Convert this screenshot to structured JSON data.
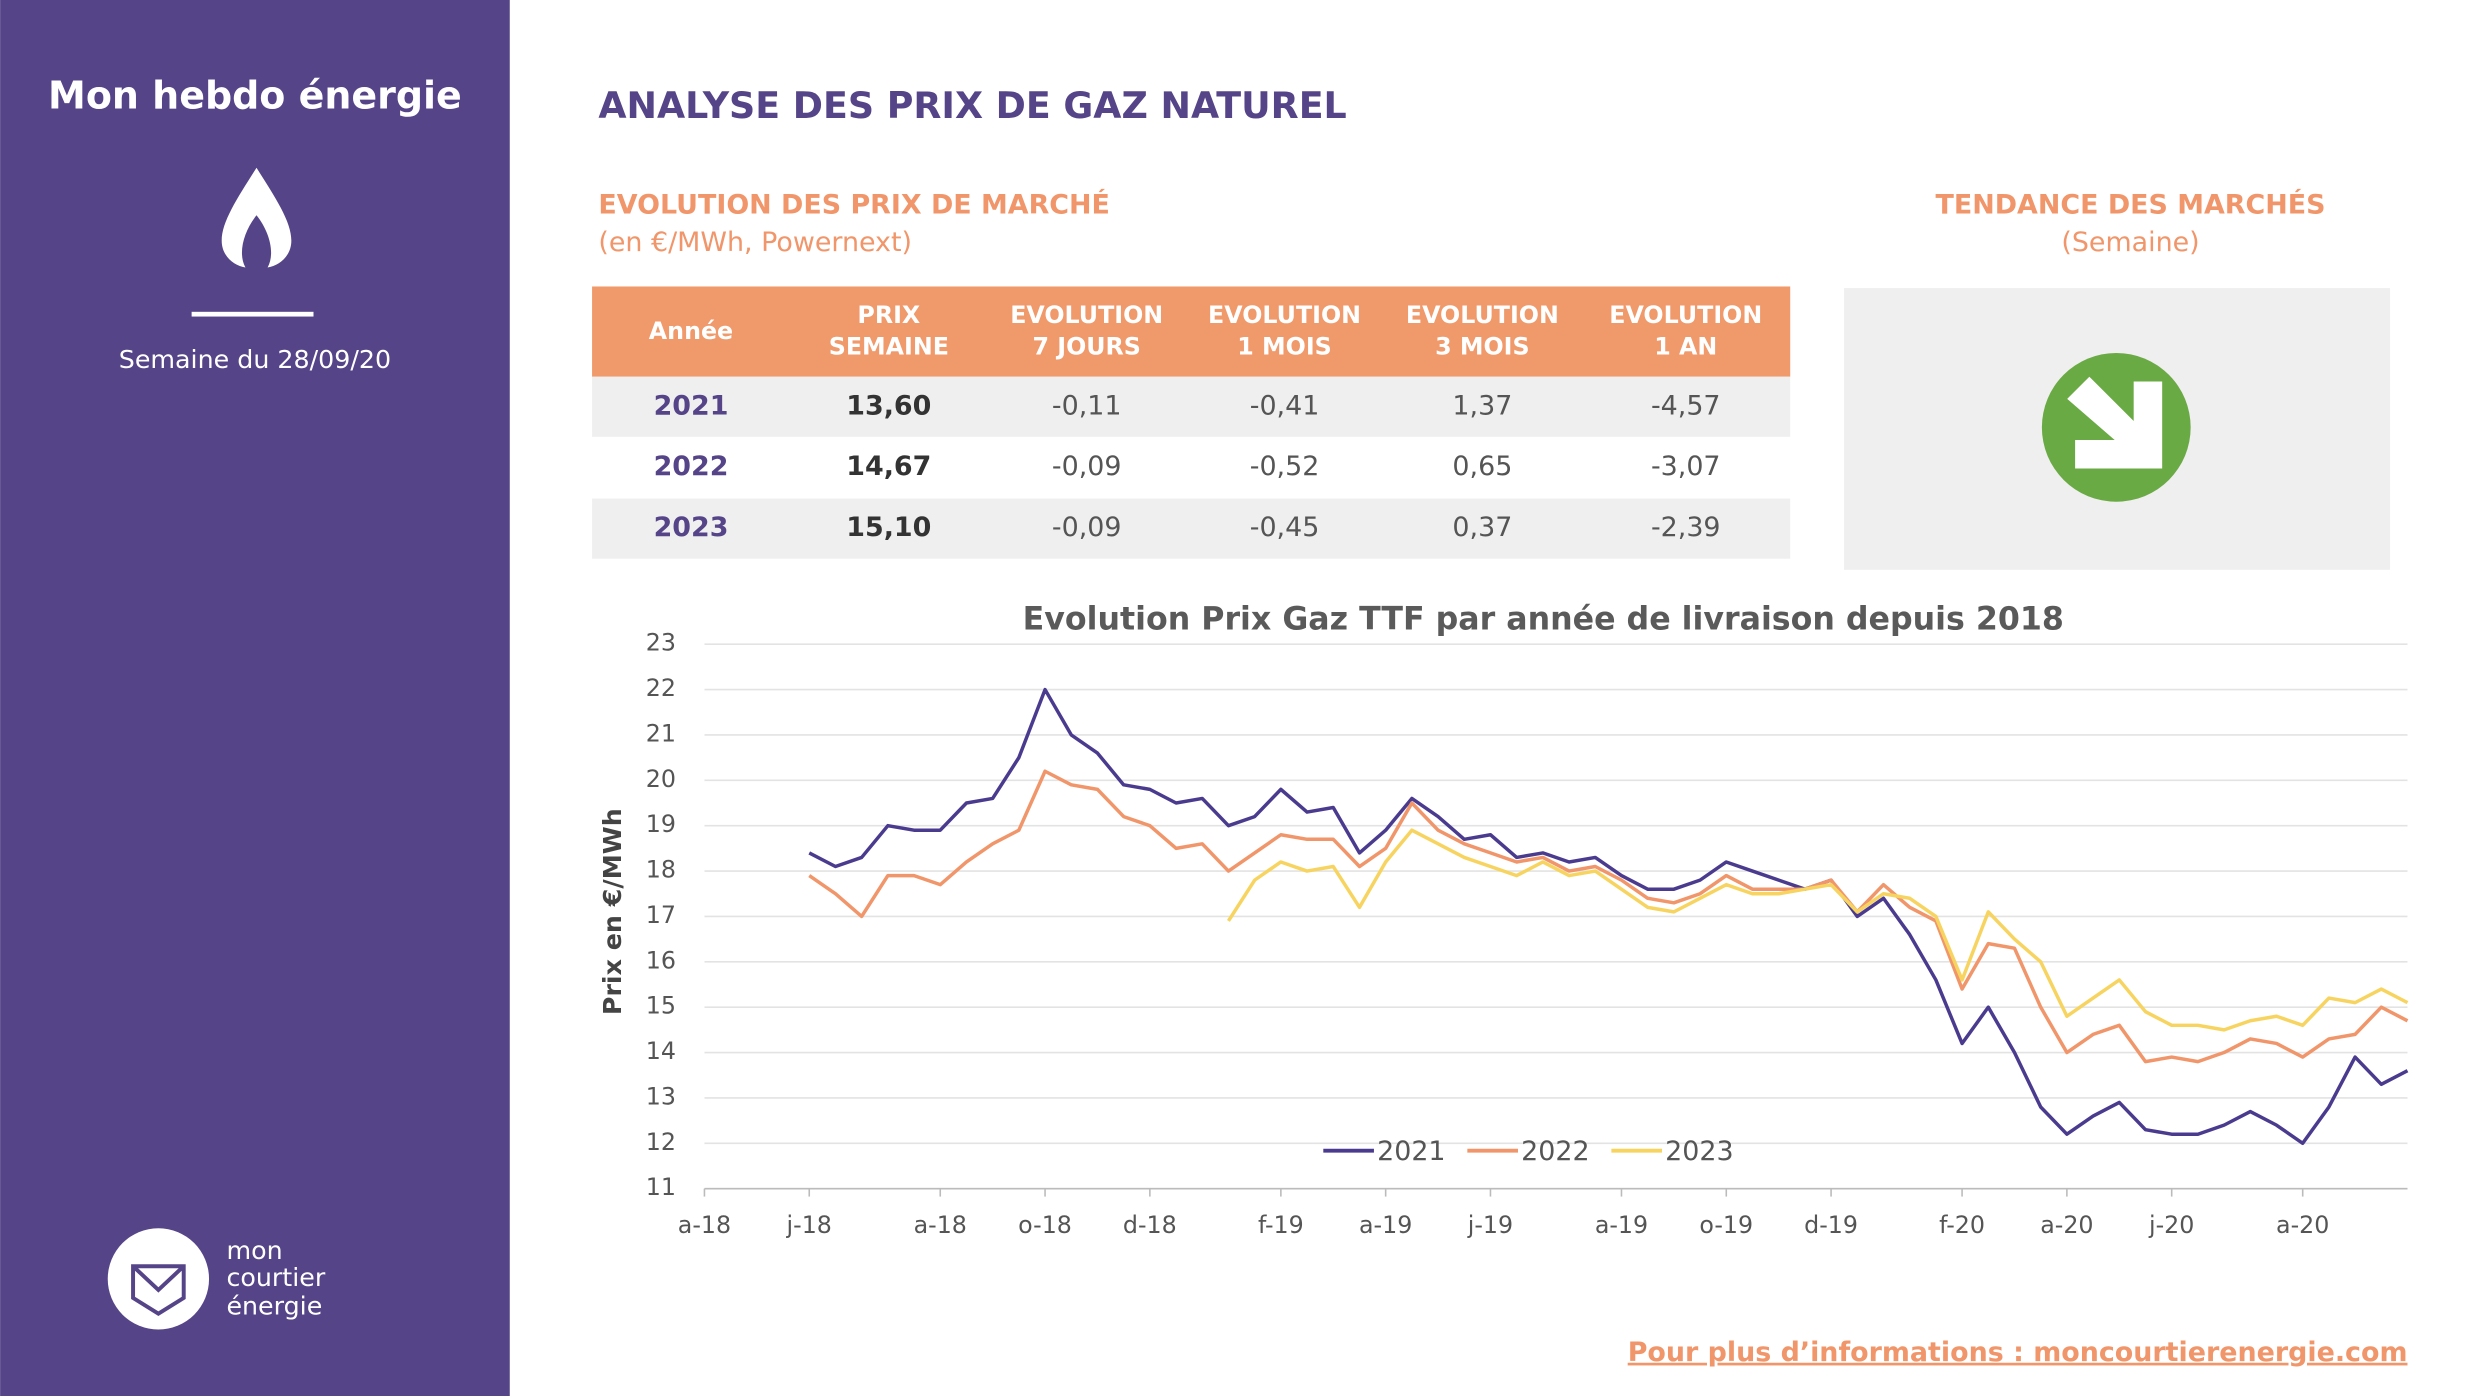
{
  "header": {
    "brand": "Mon hebdo énergie",
    "week": "Semaine du 28/09/20"
  },
  "logo": {
    "lines": [
      "mon",
      "courtier",
      "énergie"
    ]
  },
  "page_title": "ANALYSE DES PRIX DE GAZ NATUREL",
  "table_section": {
    "title": "EVOLUTION DES PRIX DE MARCHÉ",
    "subtitle": "(en €/MWh, Powernext)"
  },
  "trend_section": {
    "title": "TENDANCE DES MARCHÉS",
    "subtitle": "(Semaine)"
  },
  "table": {
    "columns": [
      [
        "Année"
      ],
      [
        "PRIX",
        "SEMAINE"
      ],
      [
        "EVOLUTION",
        "7 JOURS"
      ],
      [
        "EVOLUTION",
        "1 MOIS"
      ],
      [
        "EVOLUTION",
        "3 MOIS"
      ],
      [
        "EVOLUTION",
        "1 AN"
      ]
    ],
    "rows": [
      [
        "2021",
        "13,60",
        "-0,11",
        "-0,41",
        "1,37",
        "-4,57"
      ],
      [
        "2022",
        "14,67",
        "-0,09",
        "-0,52",
        "0,65",
        "-3,07"
      ],
      [
        "2023",
        "15,10",
        "-0,09",
        "-0,45",
        "0,37",
        "-2,39"
      ]
    ]
  },
  "footer": {
    "link": "Pour plus d’informations : moncourtierenergie.com"
  },
  "chart_data": {
    "type": "line",
    "title": "Evolution Prix Gaz TTF par année de livraison depuis 2018",
    "y_label": "Prix en €/MWh",
    "categories": [
      "a-18",
      null,
      null,
      null,
      "j-18",
      null,
      null,
      null,
      null,
      "a-18",
      null,
      null,
      null,
      "o-18",
      null,
      null,
      null,
      "d-18",
      null,
      null,
      null,
      null,
      "f-19",
      null,
      null,
      null,
      "a-19",
      null,
      null,
      null,
      "j-19",
      null,
      null,
      null,
      null,
      "a-19",
      null,
      null,
      null,
      "o-19",
      null,
      null,
      null,
      "d-19",
      null,
      null,
      null,
      null,
      "f-20",
      null,
      null,
      null,
      "a-20",
      null,
      null,
      null,
      "j-20",
      null,
      null,
      null,
      null,
      "a-20",
      null,
      null,
      null,
      null
    ],
    "ylim": [
      11,
      23
    ],
    "yticks": [
      11,
      12,
      13,
      14,
      15,
      16,
      17,
      18,
      19,
      20,
      21,
      22,
      23
    ],
    "grid": true,
    "series": [
      {
        "name": "2021",
        "color": "#4b3b8f",
        "values": [
          null,
          null,
          null,
          null,
          18.4,
          18.1,
          18.3,
          19.0,
          18.9,
          18.9,
          19.5,
          19.6,
          20.5,
          22.0,
          21.0,
          20.6,
          19.9,
          19.8,
          19.5,
          19.6,
          19.0,
          19.2,
          19.8,
          19.3,
          19.4,
          18.4,
          18.9,
          19.6,
          19.2,
          18.7,
          18.8,
          18.3,
          18.4,
          18.2,
          18.3,
          17.9,
          17.6,
          17.6,
          17.8,
          18.2,
          18.0,
          17.8,
          17.6,
          17.8,
          17.0,
          17.4,
          16.6,
          15.6,
          14.2,
          15.0,
          14.0,
          12.8,
          12.2,
          12.6,
          12.9,
          12.3,
          12.2,
          12.2,
          12.4,
          12.7,
          12.4,
          12.0,
          12.8,
          13.9,
          13.3,
          13.6
        ]
      },
      {
        "name": "2022",
        "color": "#f0966a",
        "values": [
          null,
          null,
          null,
          null,
          17.9,
          17.5,
          17.0,
          17.9,
          17.9,
          17.7,
          18.2,
          18.6,
          18.9,
          20.2,
          19.9,
          19.8,
          19.2,
          19.0,
          18.5,
          18.6,
          18.0,
          18.4,
          18.8,
          18.7,
          18.7,
          18.1,
          18.5,
          19.5,
          18.9,
          18.6,
          18.4,
          18.2,
          18.3,
          18.0,
          18.1,
          17.8,
          17.4,
          17.3,
          17.5,
          17.9,
          17.6,
          17.6,
          17.6,
          17.8,
          17.1,
          17.7,
          17.2,
          16.9,
          15.4,
          16.4,
          16.3,
          15.0,
          14.0,
          14.4,
          14.6,
          13.8,
          13.9,
          13.8,
          14.0,
          14.3,
          14.2,
          13.9,
          14.3,
          14.4,
          15.0,
          14.7
        ]
      },
      {
        "name": "2023",
        "color": "#f7d460",
        "values": [
          null,
          null,
          null,
          null,
          null,
          null,
          null,
          null,
          null,
          null,
          null,
          null,
          null,
          null,
          null,
          null,
          null,
          null,
          null,
          null,
          16.9,
          17.8,
          18.2,
          18.0,
          18.1,
          17.2,
          18.2,
          18.9,
          18.6,
          18.3,
          18.1,
          17.9,
          18.2,
          17.9,
          18.0,
          17.6,
          17.2,
          17.1,
          17.4,
          17.7,
          17.5,
          17.5,
          17.6,
          17.7,
          17.1,
          17.5,
          17.4,
          17.0,
          15.6,
          17.1,
          16.5,
          16.0,
          14.8,
          15.2,
          15.6,
          14.9,
          14.6,
          14.6,
          14.5,
          14.7,
          14.8,
          14.6,
          15.2,
          15.1,
          15.4,
          15.1
        ]
      }
    ]
  }
}
